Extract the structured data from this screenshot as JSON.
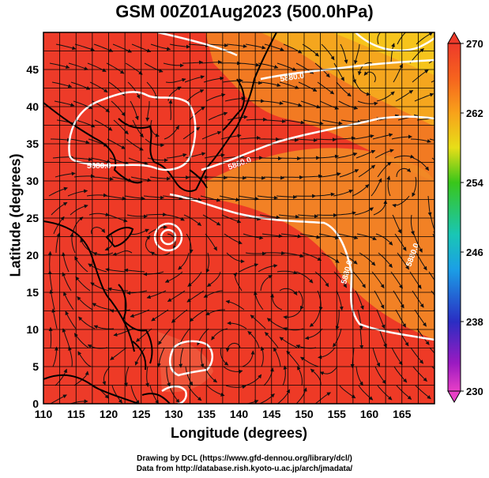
{
  "title": "GSM 00Z01Aug2023 (500.0hPa)",
  "axes": {
    "xlabel": "Longitude (degrees)",
    "ylabel": "Latitude  (degrees)",
    "xticks": [
      "110",
      "115",
      "120",
      "125",
      "130",
      "135",
      "140",
      "145",
      "150",
      "155",
      "160",
      "165"
    ],
    "yticks": [
      "0",
      "5",
      "10",
      "15",
      "20",
      "25",
      "30",
      "35",
      "40",
      "45"
    ]
  },
  "colorbar": {
    "labels": [
      "270",
      "262",
      "254",
      "246",
      "238",
      "230"
    ]
  },
  "contour_labels": [
    "5880.0",
    "5880.0",
    "5880.0",
    "5880.0",
    "5880.0"
  ],
  "credits": {
    "line1": "Drawing by DCL (https://www.gfd-dennou.org/library/dcl/)",
    "line2": "Data from http://database.rish.kyoto-u.ac.jp/arch/jmadata/"
  },
  "chart_data": {
    "type": "heatmap",
    "title": "GSM 00Z01Aug2023 (500.0hPa)",
    "xlabel": "Longitude (degrees)",
    "ylabel": "Latitude  (degrees)",
    "xlim": [
      110,
      170
    ],
    "ylim": [
      0,
      50
    ],
    "colorbar_range": [
      230,
      270
    ],
    "colorbar_ticks": [
      270,
      262,
      254,
      246,
      238,
      230
    ],
    "overlay": "streamlines",
    "contour_value": "5880.0",
    "colors": {
      "warm": "#ee3a26",
      "mid": "#f57a1c",
      "cool": "#f6c51c"
    }
  }
}
